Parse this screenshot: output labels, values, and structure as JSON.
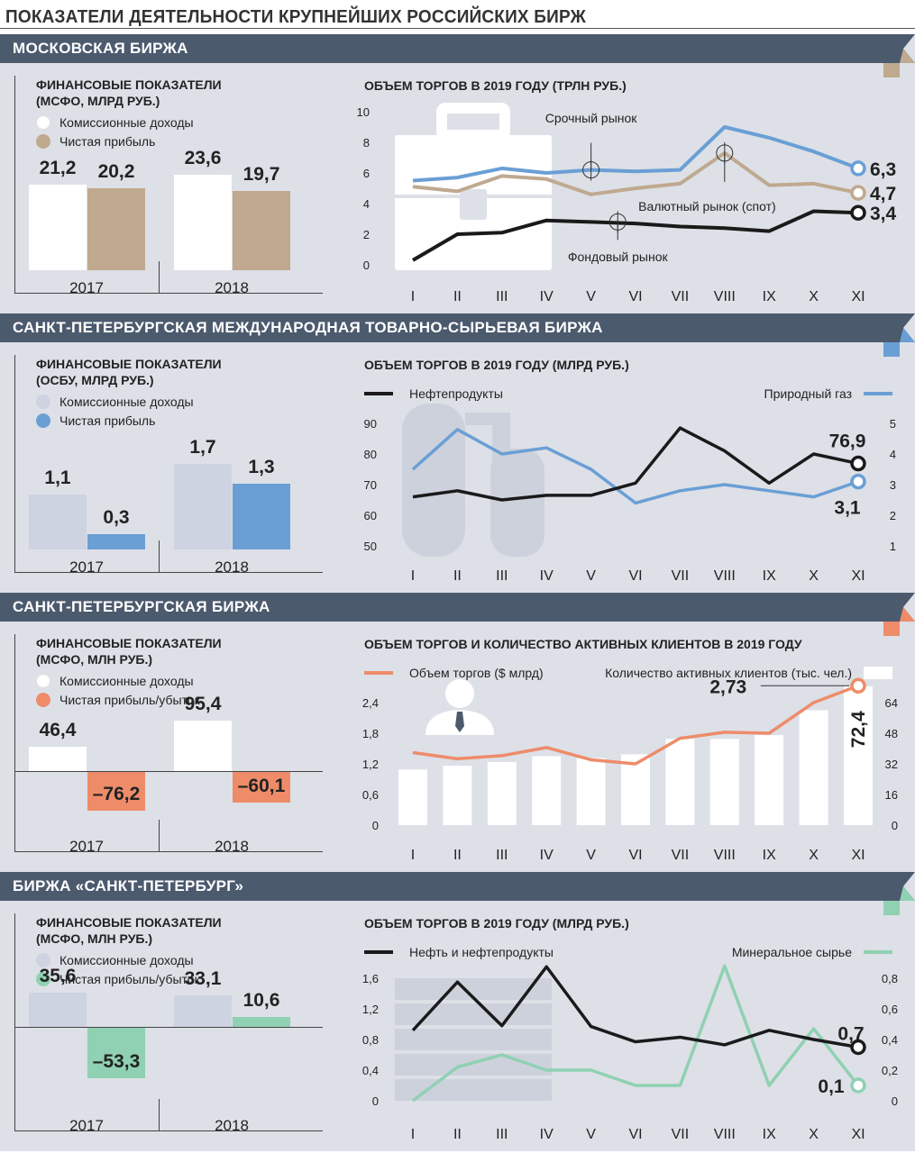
{
  "page_title": "ПОКАЗАТЕЛИ ДЕЯТЕЛЬНОСТИ КРУПНЕЙШИХ РОССИЙСКИХ БИРЖ",
  "colors": {
    "header": "#4c5a6e",
    "panel": "#dde0e7",
    "tan": "#bfa98f",
    "blue": "#6a9fd5",
    "salmon": "#ee8c6a",
    "mint": "#8fd1b2",
    "grey": "#cdd3e0",
    "black": "#1a1a1a"
  },
  "sections": [
    {
      "header": "МОСКОВСКАЯ БИРЖА",
      "ribbon_color": "#bfa98f",
      "fin": {
        "title": "ФИНАНСОВЫЕ ПОКАЗАТЕЛИ\n(МСФО, МЛРД РУБ.)",
        "legend": [
          "Комиссионные доходы",
          "Чистая прибыль"
        ],
        "colors": [
          "#ffffff",
          "#bfa98f"
        ],
        "years": [
          "2017",
          "2018"
        ],
        "labels_a": [
          "21,2",
          "23,6"
        ],
        "labels_b": [
          "20,2",
          "19,7"
        ]
      },
      "chart_title": "ОБЪЕМ ТОРГОВ В 2019 ГОДУ (ТРЛН РУБ.)",
      "months": [
        "I",
        "II",
        "III",
        "IV",
        "V",
        "VI",
        "VII",
        "VIII",
        "IX",
        "X",
        "XI"
      ],
      "y_left_ticks": [
        "0",
        "2",
        "4",
        "6",
        "8",
        "10"
      ],
      "series_labels": [
        "Срочный рынок",
        "Валютный рынок (спот)",
        "Фондовый рынок"
      ],
      "end_labels": [
        "6,3",
        "4,7",
        "3,4"
      ]
    },
    {
      "header": "САНКТ-ПЕТЕРБУРГСКАЯ МЕЖДУНАРОДНАЯ ТОВАРНО-СЫРЬЕВАЯ БИРЖА",
      "ribbon_color": "#6a9fd5",
      "fin": {
        "title": "ФИНАНСОВЫЕ ПОКАЗАТЕЛИ\n(ОСБУ, МЛРД РУБ.)",
        "legend": [
          "Комиссионные доходы",
          "Чистая прибыль"
        ],
        "colors": [
          "#cdd3e0",
          "#6a9fd5"
        ],
        "years": [
          "2017",
          "2018"
        ],
        "labels_a": [
          "1,1",
          "1,7"
        ],
        "labels_b": [
          "0,3",
          "1,3"
        ]
      },
      "chart_title": "ОБЪЕМ ТОРГОВ В 2019 ГОДУ (МЛРД РУБ.)",
      "months": [
        "I",
        "II",
        "III",
        "IV",
        "V",
        "VI",
        "VII",
        "VIII",
        "IX",
        "X",
        "XI"
      ],
      "y_left_ticks": [
        "50",
        "60",
        "70",
        "80",
        "90"
      ],
      "y_right_ticks": [
        "1",
        "2",
        "3",
        "4",
        "5"
      ],
      "legend_left": "Нефтепродукты",
      "legend_right": "Природный газ",
      "end_labels": [
        "76,9",
        "3,1"
      ]
    },
    {
      "header": "САНКТ-ПЕТЕРБУРГСКАЯ БИРЖА",
      "ribbon_color": "#ee8c6a",
      "fin": {
        "title": "ФИНАНСОВЫЕ ПОКАЗАТЕЛИ\n(МСФО, МЛН РУБ.)",
        "legend": [
          "Комиссионные доходы",
          "Чистая прибыль/убыток"
        ],
        "colors": [
          "#ffffff",
          "#ee8c6a"
        ],
        "years": [
          "2017",
          "2018"
        ],
        "labels_a": [
          "46,4",
          "95,4"
        ],
        "labels_b": [
          "–76,2",
          "–60,1"
        ]
      },
      "chart_title": "ОБЪЕМ ТОРГОВ И КОЛИЧЕСТВО АКТИВНЫХ КЛИЕНТОВ В 2019 ГОДУ",
      "months": [
        "I",
        "II",
        "III",
        "IV",
        "V",
        "VI",
        "VII",
        "VIII",
        "IX",
        "X",
        "XI"
      ],
      "y_left_ticks": [
        "0",
        "0,6",
        "1,2",
        "1,8",
        "2,4"
      ],
      "y_right_ticks": [
        "0",
        "16",
        "32",
        "48",
        "64"
      ],
      "legend_left": "Объем торгов ($ млрд)",
      "legend_right": "Количество активных клиентов (тыс. чел.)",
      "end_labels": [
        "2,73",
        "72,4"
      ]
    },
    {
      "header": "БИРЖА «САНКТ-ПЕТЕРБУРГ»",
      "ribbon_color": "#8fd1b2",
      "fin": {
        "title": "ФИНАНСОВЫЕ ПОКАЗАТЕЛИ\n(МСФО, МЛН РУБ.)",
        "legend": [
          "Комиссионные доходы",
          "Чистая прибыль/убыток"
        ],
        "colors": [
          "#cdd3e0",
          "#8fd1b2"
        ],
        "years": [
          "2017",
          "2018"
        ],
        "labels_a": [
          "35,6",
          "33,1"
        ],
        "labels_b": [
          "–53,3",
          "10,6"
        ]
      },
      "chart_title": "ОБЪЕМ ТОРГОВ В 2019 ГОДУ (МЛРД РУБ.)",
      "months": [
        "I",
        "II",
        "III",
        "IV",
        "V",
        "VI",
        "VII",
        "VIII",
        "IX",
        "X",
        "XI"
      ],
      "y_left_ticks": [
        "0",
        "0,4",
        "0,8",
        "1,2",
        "1,6"
      ],
      "y_right_ticks": [
        "0",
        "0,2",
        "0,4",
        "0,6",
        "0,8"
      ],
      "legend_left": "Нефть и нефтепродукты",
      "legend_right": "Минеральное сырье",
      "end_labels": [
        "0,7",
        "0,1"
      ]
    }
  ],
  "chart_data": [
    {
      "type": "bar",
      "title": "ФИНАНСОВЫЕ ПОКАЗАТЕЛИ (МСФО, МЛРД РУБ.)",
      "categories": [
        "2017",
        "2018"
      ],
      "series": [
        {
          "name": "Комиссионные доходы",
          "values": [
            21.2,
            23.6
          ]
        },
        {
          "name": "Чистая прибыль",
          "values": [
            20.2,
            19.7
          ]
        }
      ]
    },
    {
      "type": "line",
      "title": "ОБЪЕМ ТОРГОВ В 2019 ГОДУ (ТРЛН РУБ.)",
      "categories": [
        "I",
        "II",
        "III",
        "IV",
        "V",
        "VI",
        "VII",
        "VIII",
        "IX",
        "X",
        "XI"
      ],
      "ylim": [
        0,
        10
      ],
      "series": [
        {
          "name": "Срочный рынок",
          "values": [
            5.5,
            5.7,
            6.3,
            6.0,
            6.2,
            6.1,
            6.2,
            9.0,
            8.3,
            7.4,
            6.3
          ]
        },
        {
          "name": "Валютный рынок (спот)",
          "values": [
            5.1,
            4.8,
            5.8,
            5.6,
            4.6,
            5.0,
            5.3,
            7.3,
            5.2,
            5.3,
            4.7
          ]
        },
        {
          "name": "Фондовый рынок",
          "values": [
            0.3,
            2.0,
            2.1,
            2.9,
            2.8,
            2.7,
            2.5,
            2.4,
            2.2,
            3.5,
            3.4
          ]
        }
      ]
    },
    {
      "type": "bar",
      "title": "ФИНАНСОВЫЕ ПОКАЗАТЕЛИ (ОСБУ, МЛРД РУБ.)",
      "categories": [
        "2017",
        "2018"
      ],
      "series": [
        {
          "name": "Комиссионные доходы",
          "values": [
            1.1,
            1.7
          ]
        },
        {
          "name": "Чистая прибыль",
          "values": [
            0.3,
            1.3
          ]
        }
      ]
    },
    {
      "type": "line",
      "title": "ОБЪЕМ ТОРГОВ В 2019 ГОДУ (МЛРД РУБ.)",
      "categories": [
        "I",
        "II",
        "III",
        "IV",
        "V",
        "VI",
        "VII",
        "VIII",
        "IX",
        "X",
        "XI"
      ],
      "series": [
        {
          "name": "Нефтепродукты",
          "axis": "left",
          "ylim": [
            50,
            90
          ],
          "values": [
            66,
            68,
            65,
            66.5,
            66.5,
            70.5,
            88.5,
            81,
            70.5,
            80,
            76.9
          ]
        },
        {
          "name": "Природный газ",
          "axis": "right",
          "ylim": [
            1,
            5
          ],
          "values": [
            3.5,
            4.8,
            4.0,
            4.2,
            3.5,
            2.4,
            2.8,
            3.0,
            2.8,
            2.6,
            3.1
          ]
        }
      ]
    },
    {
      "type": "bar",
      "title": "ФИНАНСОВЫЕ ПОКАЗАТЕЛИ (МСФО, МЛН РУБ.)",
      "categories": [
        "2017",
        "2018"
      ],
      "series": [
        {
          "name": "Комиссионные доходы",
          "values": [
            46.4,
            95.4
          ]
        },
        {
          "name": "Чистая прибыль/убыток",
          "values": [
            -76.2,
            -60.1
          ]
        }
      ]
    },
    {
      "type": "bar",
      "title": "ОБЪЕМ ТОРГОВ И КОЛИЧЕСТВО АКТИВНЫХ КЛИЕНТОВ В 2019 ГОДУ",
      "categories": [
        "I",
        "II",
        "III",
        "IV",
        "V",
        "VI",
        "VII",
        "VIII",
        "IX",
        "X",
        "XI"
      ],
      "series": [
        {
          "name": "Количество активных клиентов (тыс. чел.)",
          "type": "bar",
          "axis": "right",
          "ylim": [
            0,
            64
          ],
          "values": [
            29,
            31,
            33,
            36,
            35,
            37,
            45,
            45,
            47,
            60,
            72.4
          ]
        },
        {
          "name": "Объем торгов ($ млрд)",
          "type": "line",
          "axis": "left",
          "ylim": [
            0,
            2.4
          ],
          "values": [
            1.42,
            1.3,
            1.36,
            1.52,
            1.28,
            1.2,
            1.7,
            1.82,
            1.8,
            2.4,
            2.73
          ]
        }
      ]
    },
    {
      "type": "bar",
      "title": "ФИНАНСОВЫЕ ПОКАЗАТЕЛИ (МСФО, МЛН РУБ.)",
      "categories": [
        "2017",
        "2018"
      ],
      "series": [
        {
          "name": "Комиссионные доходы",
          "values": [
            35.6,
            33.1
          ]
        },
        {
          "name": "Чистая прибыль/убыток",
          "values": [
            -53.3,
            10.6
          ]
        }
      ]
    },
    {
      "type": "line",
      "title": "ОБЪЕМ ТОРГОВ В 2019 ГОДУ (МЛРД РУБ.)",
      "categories": [
        "I",
        "II",
        "III",
        "IV",
        "V",
        "VI",
        "VII",
        "VIII",
        "IX",
        "X",
        "XI"
      ],
      "series": [
        {
          "name": "Нефть и нефтепродукты",
          "axis": "left",
          "ylim": [
            0,
            1.6
          ],
          "values": [
            0.92,
            1.55,
            0.98,
            1.75,
            0.97,
            0.77,
            0.83,
            0.73,
            0.92,
            0.8,
            0.7
          ]
        },
        {
          "name": "Минеральное сырье",
          "axis": "right",
          "ylim": [
            0,
            0.8
          ],
          "values": [
            0,
            0.22,
            0.3,
            0.2,
            0.2,
            0.1,
            0.1,
            0.88,
            0.1,
            0.47,
            0.1
          ]
        }
      ]
    }
  ]
}
